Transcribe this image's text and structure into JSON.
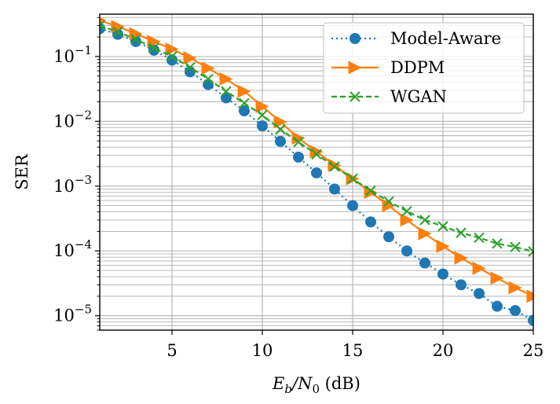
{
  "chart_data": {
    "type": "line",
    "title": "",
    "xlabel": "E_b/N_0 (dB)",
    "ylabel": "SER",
    "xscale": "linear",
    "yscale": "log",
    "xlim": [
      1,
      25
    ],
    "ylim": [
      6e-06,
      0.45
    ],
    "xticks": [
      5,
      10,
      15,
      20,
      25
    ],
    "yticks": [
      1e-05,
      0.0001,
      0.001,
      0.01,
      0.1
    ],
    "grid": true,
    "legend_position": "top-right",
    "x": [
      1,
      2,
      3,
      4,
      5,
      6,
      7,
      8,
      9,
      10,
      11,
      12,
      13,
      14,
      15,
      16,
      17,
      18,
      19,
      20,
      21,
      22,
      23,
      24,
      25
    ],
    "series": [
      {
        "name": "Model-Aware",
        "color": "#1f77b4",
        "linestyle": "dotted",
        "marker": "circle",
        "values": [
          0.27,
          0.22,
          0.17,
          0.125,
          0.088,
          0.058,
          0.037,
          0.023,
          0.0145,
          0.0085,
          0.0049,
          0.0028,
          0.0016,
          0.0009,
          0.0005,
          0.00028,
          0.000165,
          0.0001,
          6.5e-05,
          4.4e-05,
          3e-05,
          2.2e-05,
          1.4e-05,
          1.2e-05,
          8.5e-06
        ]
      },
      {
        "name": "DDPM",
        "color": "#ff7f0e",
        "linestyle": "solid",
        "marker": "triangle-right",
        "values": [
          0.36,
          0.29,
          0.225,
          0.17,
          0.13,
          0.095,
          0.066,
          0.045,
          0.029,
          0.017,
          0.0098,
          0.0055,
          0.0034,
          0.0021,
          0.0013,
          0.0008,
          0.0005,
          0.0003,
          0.000185,
          0.000118,
          7.8e-05,
          5.4e-05,
          3.8e-05,
          2.7e-05,
          2e-05
        ]
      },
      {
        "name": "WGAN",
        "color": "#2ca02c",
        "linestyle": "dashed",
        "marker": "x",
        "values": [
          0.3,
          0.24,
          0.185,
          0.135,
          0.1,
          0.068,
          0.045,
          0.029,
          0.019,
          0.0125,
          0.0075,
          0.0048,
          0.0031,
          0.002,
          0.0013,
          0.00085,
          0.00058,
          0.00041,
          0.0003,
          0.00024,
          0.00019,
          0.00016,
          0.00013,
          0.000115,
          9.8e-05
        ]
      }
    ],
    "x_tick_labels": [
      "5",
      "10",
      "15",
      "20",
      "25"
    ],
    "y_tick_bases": [
      "10",
      "10",
      "10",
      "10",
      "10"
    ],
    "y_tick_exps": [
      "−5",
      "−4",
      "−3",
      "−2",
      "−1"
    ]
  }
}
